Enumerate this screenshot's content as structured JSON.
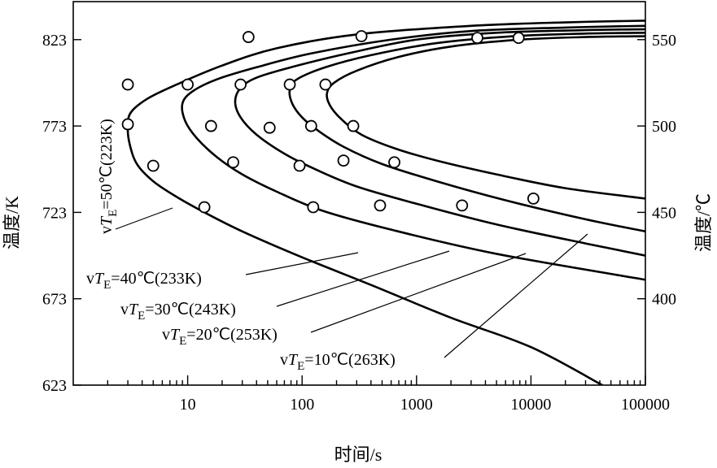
{
  "chart_data": {
    "type": "line",
    "xlabel": "时间/s",
    "ylabel_left": "温度/K",
    "ylabel_right": "温度/℃",
    "x_scale": "log",
    "xlim": [
      1,
      100000
    ],
    "ylim": [
      623,
      845
    ],
    "x_ticks": [
      10,
      100,
      1000,
      10000,
      100000
    ],
    "x_tick_labels": [
      "10",
      "100",
      "1000",
      "10000",
      "100000"
    ],
    "y_left_ticks": [
      623,
      673,
      723,
      773,
      823
    ],
    "y_left_tick_labels": [
      "623",
      "673",
      "723",
      "773",
      "823"
    ],
    "y_right_ticks": [
      673,
      723,
      773,
      823
    ],
    "y_right_tick_labels": [
      "400",
      "450",
      "500",
      "550"
    ],
    "grid": false,
    "legend": "none",
    "series": [
      {
        "name": "vT_E=50℃(223K)",
        "label_parts": [
          "v",
          "T",
          "E",
          "=50℃(223K)"
        ],
        "points": [
          [
            100000,
            834
          ],
          [
            20000,
            833
          ],
          [
            3000,
            831
          ],
          [
            300,
            826
          ],
          [
            60,
            818
          ],
          [
            20,
            808
          ],
          [
            8,
            797
          ],
          [
            4.5,
            789
          ],
          [
            3.2,
            781
          ],
          [
            3,
            773
          ],
          [
            3.1,
            763
          ],
          [
            3.6,
            751
          ],
          [
            5,
            741
          ],
          [
            8,
            732
          ],
          [
            14,
            723
          ],
          [
            30,
            712
          ],
          [
            100,
            697
          ],
          [
            400,
            681
          ],
          [
            2000,
            662
          ],
          [
            10000,
            645
          ],
          [
            42000,
            623
          ]
        ],
        "data_points": [
          [
            34,
            824.5
          ],
          [
            3,
            797
          ],
          [
            3,
            774
          ],
          [
            5,
            750
          ],
          [
            14,
            726
          ]
        ]
      },
      {
        "name": "vT_E=40℃(233K)",
        "label_parts": [
          "v",
          "T",
          "E",
          "=40℃(233K)"
        ],
        "points": [
          [
            100000,
            831
          ],
          [
            20000,
            830
          ],
          [
            3000,
            828
          ],
          [
            600,
            823
          ],
          [
            120,
            815
          ],
          [
            40,
            807
          ],
          [
            18,
            800
          ],
          [
            11,
            793
          ],
          [
            9,
            786
          ],
          [
            9.5,
            776
          ],
          [
            12,
            766
          ],
          [
            18,
            755
          ],
          [
            30,
            745
          ],
          [
            60,
            735
          ],
          [
            150,
            724
          ],
          [
            600,
            713
          ],
          [
            5000,
            699
          ],
          [
            100000,
            684
          ]
        ],
        "data_points": [
          [
            330,
            825
          ],
          [
            10,
            797
          ],
          [
            16,
            773
          ],
          [
            25,
            752
          ],
          [
            125,
            726
          ]
        ]
      },
      {
        "name": "vT_E=30℃(243K)",
        "label_parts": [
          "v",
          "T",
          "E",
          "=30℃(243K)"
        ],
        "points": [
          [
            100000,
            829
          ],
          [
            30000,
            828.5
          ],
          [
            5000,
            827
          ],
          [
            1000,
            823
          ],
          [
            250,
            815
          ],
          [
            80,
            807
          ],
          [
            40,
            801
          ],
          [
            29,
            795
          ],
          [
            26,
            787
          ],
          [
            29,
            778
          ],
          [
            40,
            768
          ],
          [
            70,
            757
          ],
          [
            130,
            748
          ],
          [
            300,
            738
          ],
          [
            1000,
            728
          ],
          [
            5000,
            716
          ],
          [
            30000,
            705
          ],
          [
            100000,
            698
          ]
        ],
        "data_points": [
          [
            3400,
            824
          ],
          [
            29,
            797
          ],
          [
            52,
            772
          ],
          [
            95,
            750
          ],
          [
            480,
            727
          ]
        ]
      },
      {
        "name": "vT_E=20℃(253K)",
        "label_parts": [
          "v",
          "T",
          "E",
          "=20℃(253K)"
        ],
        "points": [
          [
            100000,
            827
          ],
          [
            30000,
            826.5
          ],
          [
            7000,
            825
          ],
          [
            1500,
            821
          ],
          [
            400,
            814
          ],
          [
            160,
            807
          ],
          [
            90,
            800
          ],
          [
            78,
            794
          ],
          [
            82,
            786
          ],
          [
            100,
            778
          ],
          [
            140,
            770
          ],
          [
            230,
            761
          ],
          [
            500,
            751
          ],
          [
            1500,
            741
          ],
          [
            6000,
            730
          ],
          [
            30000,
            719
          ],
          [
            100000,
            712
          ]
        ],
        "data_points": [
          [
            7800,
            824
          ],
          [
            78,
            797
          ],
          [
            120,
            773
          ],
          [
            230,
            753
          ],
          [
            2500,
            727
          ]
        ]
      },
      {
        "name": "vT_E=10℃(263K)",
        "label_parts": [
          "v",
          "T",
          "E",
          "=10℃(263K)"
        ],
        "points": [
          [
            100000,
            825
          ],
          [
            30000,
            824.5
          ],
          [
            8000,
            823
          ],
          [
            2000,
            819
          ],
          [
            700,
            813
          ],
          [
            300,
            805
          ],
          [
            190,
            798
          ],
          [
            165,
            792
          ],
          [
            175,
            785
          ],
          [
            220,
            777
          ],
          [
            330,
            768
          ],
          [
            650,
            760
          ],
          [
            1500,
            753
          ],
          [
            5000,
            745
          ],
          [
            20000,
            737
          ],
          [
            100000,
            731
          ]
        ],
        "data_points": [
          [
            160,
            797
          ],
          [
            280,
            773
          ],
          [
            640,
            752
          ],
          [
            10500,
            731
          ]
        ]
      }
    ]
  }
}
